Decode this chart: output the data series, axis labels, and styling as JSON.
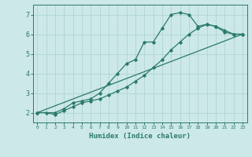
{
  "xlabel": "Humidex (Indice chaleur)",
  "bg_color": "#cce8e8",
  "grid_color": "#aad0d0",
  "line_color": "#2a7a6a",
  "xlim": [
    -0.5,
    23.5
  ],
  "ylim": [
    1.5,
    7.5
  ],
  "yticks": [
    2,
    3,
    4,
    5,
    6,
    7
  ],
  "xticks": [
    0,
    1,
    2,
    3,
    4,
    5,
    6,
    7,
    8,
    9,
    10,
    11,
    12,
    13,
    14,
    15,
    16,
    17,
    18,
    19,
    20,
    21,
    22,
    23
  ],
  "line1_x": [
    0,
    1,
    2,
    3,
    4,
    5,
    6,
    7,
    8,
    9,
    10,
    11,
    12,
    13,
    14,
    15,
    16,
    17,
    18,
    19,
    20,
    21,
    22,
    23
  ],
  "line1_y": [
    2.0,
    2.0,
    1.9,
    2.1,
    2.3,
    2.5,
    2.6,
    2.7,
    2.9,
    3.1,
    3.3,
    3.6,
    3.9,
    4.3,
    4.7,
    5.2,
    5.6,
    6.0,
    6.3,
    6.5,
    6.4,
    6.1,
    6.0,
    6.0
  ],
  "line2_x": [
    0,
    2,
    3,
    4,
    5,
    6,
    7,
    8,
    9,
    10,
    11,
    12,
    13,
    14,
    15,
    16,
    17,
    18,
    19,
    20,
    21,
    22,
    23
  ],
  "line2_y": [
    2.0,
    2.0,
    2.2,
    2.5,
    2.6,
    2.7,
    3.0,
    3.5,
    4.0,
    4.5,
    4.7,
    5.6,
    5.6,
    6.3,
    7.0,
    7.1,
    7.0,
    6.4,
    6.5,
    6.4,
    6.2,
    6.0,
    6.0
  ],
  "line3_x": [
    0,
    23
  ],
  "line3_y": [
    2.0,
    6.0
  ]
}
